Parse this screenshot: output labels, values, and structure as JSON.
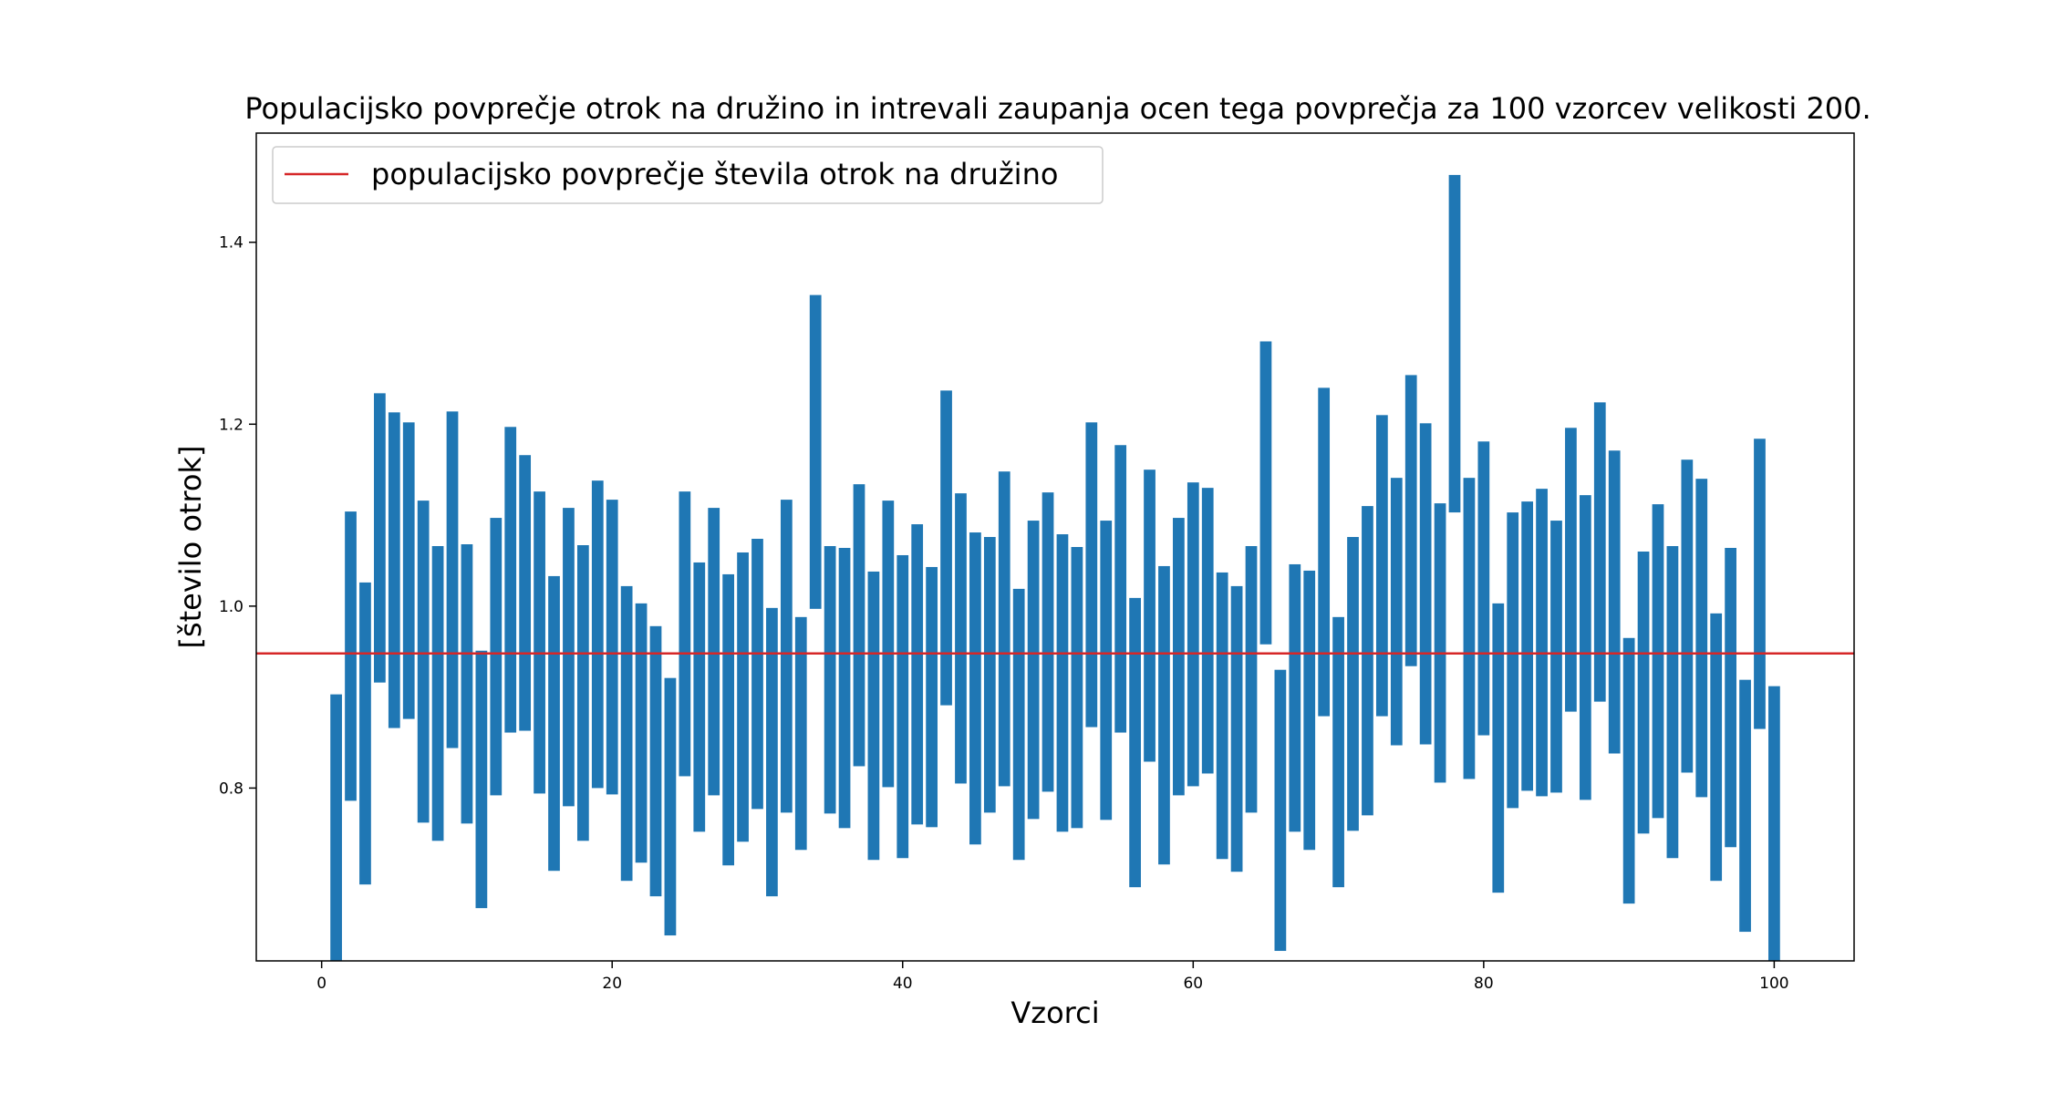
{
  "chart_data": {
    "type": "bar",
    "title": "Populacijsko povprečje otrok na družino in intrevali zaupanja ocen tega povprečja za 100 vzorcev velikosti 200.",
    "xlabel": "Vzorci",
    "ylabel": "[število otrok]",
    "xlim": [
      -4.5,
      105.5
    ],
    "ylim": [
      0.61,
      1.52
    ],
    "x_ticks": [
      0,
      20,
      40,
      60,
      80,
      100
    ],
    "y_ticks": [
      0.8,
      1.0,
      1.2,
      1.4
    ],
    "y_tick_labels": [
      "0.8",
      "1.0",
      "1.2",
      "1.4"
    ],
    "grid": false,
    "bar_color": "#1f77b4",
    "reference_line": {
      "label": "populacijsko povprečje števila otrok na družino",
      "value": 0.948,
      "color": "#d62728"
    },
    "legend": {
      "position": "top-left",
      "entries": [
        "populacijsko povprečje števila otrok na družino"
      ]
    },
    "series": [
      {
        "x": [
          1,
          2,
          3,
          4,
          5,
          6,
          7,
          8,
          9,
          10,
          11,
          12,
          13,
          14,
          15,
          16,
          17,
          18,
          19,
          20,
          21,
          22,
          23,
          24,
          25,
          26,
          27,
          28,
          29,
          30,
          31,
          32,
          33,
          34,
          35,
          36,
          37,
          38,
          39,
          40,
          41,
          42,
          43,
          44,
          45,
          46,
          47,
          48,
          49,
          50,
          51,
          52,
          53,
          54,
          55,
          56,
          57,
          58,
          59,
          60,
          61,
          62,
          63,
          64,
          65,
          66,
          67,
          68,
          69,
          70,
          71,
          72,
          73,
          74,
          75,
          76,
          77,
          78,
          79,
          80,
          81,
          82,
          83,
          84,
          85,
          86,
          87,
          88,
          89,
          90,
          91,
          92,
          93,
          94,
          95,
          96,
          97,
          98,
          99,
          100
        ],
        "low": [
          0.58,
          0.786,
          0.694,
          0.916,
          0.866,
          0.876,
          0.762,
          0.742,
          0.844,
          0.761,
          0.668,
          0.792,
          0.861,
          0.863,
          0.794,
          0.709,
          0.78,
          0.742,
          0.8,
          0.793,
          0.698,
          0.718,
          0.681,
          0.638,
          0.813,
          0.752,
          0.792,
          0.715,
          0.741,
          0.777,
          0.681,
          0.773,
          0.732,
          0.997,
          0.772,
          0.756,
          0.824,
          0.721,
          0.801,
          0.723,
          0.76,
          0.757,
          0.891,
          0.805,
          0.738,
          0.773,
          0.802,
          0.721,
          0.766,
          0.796,
          0.752,
          0.756,
          0.867,
          0.765,
          0.861,
          0.691,
          0.829,
          0.716,
          0.792,
          0.802,
          0.816,
          0.722,
          0.708,
          0.773,
          0.958,
          0.621,
          0.752,
          0.732,
          0.879,
          0.691,
          0.753,
          0.77,
          0.879,
          0.847,
          0.934,
          0.848,
          0.806,
          1.103,
          0.81,
          0.858,
          0.685,
          0.778,
          0.797,
          0.791,
          0.795,
          0.884,
          0.787,
          0.895,
          0.838,
          0.673,
          0.75,
          0.767,
          0.723,
          0.817,
          0.79,
          0.698,
          0.735,
          0.642,
          0.865,
          0.6
        ],
        "high": [
          0.903,
          1.104,
          1.026,
          1.234,
          1.213,
          1.202,
          1.116,
          1.066,
          1.214,
          1.068,
          0.951,
          1.097,
          1.197,
          1.166,
          1.126,
          1.033,
          1.108,
          1.067,
          1.138,
          1.117,
          1.022,
          1.003,
          0.978,
          0.921,
          1.126,
          1.048,
          1.108,
          1.035,
          1.059,
          1.074,
          0.998,
          1.117,
          0.988,
          1.342,
          1.066,
          1.064,
          1.134,
          1.038,
          1.116,
          1.056,
          1.09,
          1.043,
          1.237,
          1.124,
          1.081,
          1.076,
          1.148,
          1.019,
          1.094,
          1.125,
          1.079,
          1.065,
          1.202,
          1.094,
          1.177,
          1.009,
          1.15,
          1.044,
          1.097,
          1.136,
          1.13,
          1.037,
          1.022,
          1.066,
          1.291,
          0.93,
          1.046,
          1.039,
          1.24,
          0.988,
          1.076,
          1.11,
          1.21,
          1.141,
          1.254,
          1.201,
          1.113,
          1.474,
          1.141,
          1.181,
          1.003,
          1.103,
          1.115,
          1.129,
          1.094,
          1.196,
          1.122,
          1.224,
          1.171,
          0.965,
          1.06,
          1.112,
          1.066,
          1.161,
          1.14,
          0.992,
          1.064,
          0.919,
          1.184,
          0.912
        ]
      }
    ]
  }
}
